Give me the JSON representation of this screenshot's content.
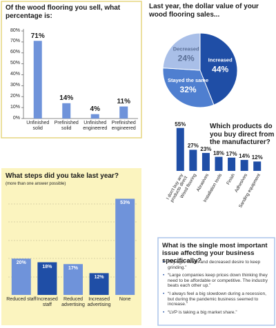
{
  "chart_data": [
    {
      "type": "bar",
      "title": "Of the wood flooring you sell, what percentage is:",
      "categories": [
        "Unfinished solid",
        "Prefinished solid",
        "Unfinished engineered",
        "Prefinished engineered"
      ],
      "values": [
        71,
        14,
        4,
        11
      ],
      "value_labels": [
        "71%",
        "14%",
        "4%",
        "11%"
      ],
      "color": "#6f93da",
      "ylim": [
        0,
        80
      ],
      "yticks": [
        {
          "value": 0,
          "label": "0%"
        },
        {
          "value": 10,
          "label": "10%"
        },
        {
          "value": 20,
          "label": "20%"
        },
        {
          "value": 30,
          "label": "30%"
        },
        {
          "value": 40,
          "label": "40%"
        },
        {
          "value": 50,
          "label": "50%"
        },
        {
          "value": 60,
          "label": "60%"
        },
        {
          "value": 70,
          "label": "70%"
        },
        {
          "value": 80,
          "label": "80%"
        }
      ]
    },
    {
      "type": "pie",
      "title": "Last year, the dollar value of your wood flooring sales...",
      "categories": [
        "Increased",
        "Stayed the same",
        "Decreased"
      ],
      "values": [
        44,
        32,
        24
      ],
      "value_labels": [
        "44%",
        "32%",
        "24%"
      ],
      "colors": [
        "#1f4ea6",
        "#4f7fd0",
        "#a9bfe8"
      ]
    },
    {
      "type": "bar",
      "title": "Which products do you buy direct from the manufacturer?",
      "categories": [
        "I don't buy any products direct",
        "Wood flooring",
        "Abrasives",
        "Installation tools",
        "Finish",
        "Adhesives",
        "Sanding equipment"
      ],
      "values": [
        55,
        27,
        23,
        18,
        17,
        14,
        12
      ],
      "value_labels": [
        "55%",
        "27%",
        "23%",
        "18%",
        "17%",
        "14%",
        "12%"
      ],
      "color": "#1f4ea6",
      "ylim": [
        0,
        60
      ]
    },
    {
      "type": "bar",
      "title": "What steps did you take last year?",
      "subtitle": "(more than one answer possible)",
      "categories": [
        "Reduced staff",
        "Increased staff",
        "Reduced advertising",
        "Increased advertising",
        "None"
      ],
      "values": [
        20,
        18,
        17,
        12,
        53
      ],
      "value_labels": [
        "20%",
        "18%",
        "17%",
        "12%",
        "53%"
      ],
      "colors": [
        "#6f93da",
        "#1f4ea6",
        "#6f93da",
        "#1f4ea6",
        "#6f93da"
      ],
      "ylim": [
        0,
        60
      ]
    }
  ],
  "issues_panel": {
    "title": "What is the single most important issue affecting your business specifically?",
    "items": [
      "“My age, health and decreased desire to keep grinding.”",
      "“Large companies keep prices down thinking they need to be affordable or competitive. The industry beats each other up.”",
      "“I always feel a big slowdown during a recession, but during the pandemic business seemed to increase.”",
      "“LVP is taking a big market share.”"
    ]
  }
}
